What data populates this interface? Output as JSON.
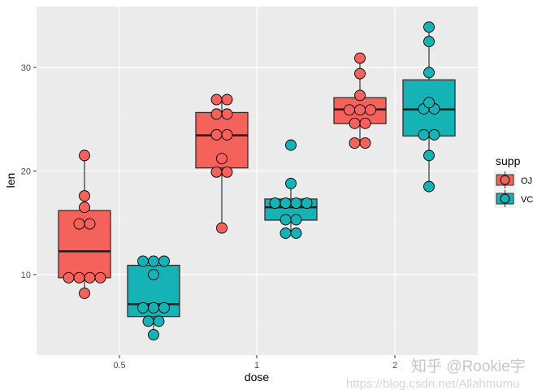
{
  "chart_data": {
    "type": "boxplot-dotplot",
    "xlabel": "dose",
    "ylabel": "len",
    "categories": [
      "0.5",
      "1",
      "2"
    ],
    "y_ticks": [
      10,
      20,
      30
    ],
    "ylim": [
      2.2,
      35.7
    ],
    "grid": true,
    "legend": {
      "title": "supp",
      "position": "right",
      "entries": [
        "OJ",
        "VC"
      ]
    },
    "colors": {
      "OJ": "#F5625C",
      "VC": "#15B2B6"
    },
    "groups": [
      {
        "dose": "0.5",
        "supp": "OJ",
        "whisker_low": 8.2,
        "q1": 9.7,
        "median": 12.25,
        "q3": 16.18,
        "whisker_high": 21.5,
        "dots": [
          21.5,
          17.6,
          16.5,
          14.9,
          14.9,
          9.7,
          9.7,
          9.7,
          9.7,
          8.2
        ]
      },
      {
        "dose": "0.5",
        "supp": "VC",
        "whisker_low": 4.2,
        "q1": 5.95,
        "median": 7.15,
        "q3": 10.9,
        "whisker_high": 11.3,
        "dots": [
          11.3,
          11.3,
          11.3,
          10.0,
          6.8,
          6.8,
          6.8,
          5.5,
          5.5,
          4.2
        ]
      },
      {
        "dose": "1",
        "supp": "OJ",
        "whisker_low": 14.5,
        "q1": 20.3,
        "median": 23.45,
        "q3": 25.65,
        "whisker_high": 26.9,
        "dots": [
          26.9,
          26.9,
          25.5,
          25.5,
          23.5,
          23.5,
          21.2,
          19.9,
          19.9,
          14.5
        ]
      },
      {
        "dose": "1",
        "supp": "VC",
        "whisker_low": 14.0,
        "q1": 15.26,
        "median": 16.5,
        "q3": 17.3,
        "whisker_high": 18.8,
        "dots": [
          22.5,
          18.8,
          16.9,
          16.9,
          16.9,
          16.9,
          15.3,
          15.3,
          14.0,
          14.0
        ]
      },
      {
        "dose": "2",
        "supp": "OJ",
        "whisker_low": 22.7,
        "q1": 24.58,
        "median": 25.95,
        "q3": 27.08,
        "whisker_high": 30.9,
        "dots": [
          30.9,
          29.4,
          27.3,
          25.9,
          25.9,
          25.9,
          24.6,
          24.6,
          22.7,
          22.7
        ]
      },
      {
        "dose": "2",
        "supp": "VC",
        "whisker_low": 18.5,
        "q1": 23.38,
        "median": 25.95,
        "q3": 28.8,
        "whisker_high": 33.9,
        "dots": [
          33.9,
          32.5,
          29.5,
          26.6,
          26.0,
          26.0,
          23.5,
          23.5,
          21.5,
          18.5
        ]
      }
    ]
  },
  "watermark": {
    "line1": "知乎 @Rookie宇",
    "line2": "https://blog.csdn.net/Allahmumu"
  }
}
